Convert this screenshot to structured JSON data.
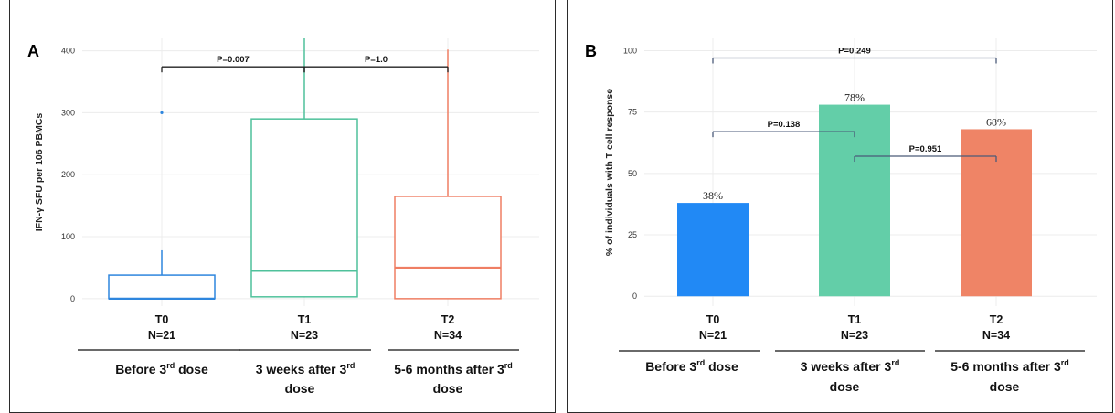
{
  "chart_data": [
    {
      "type": "box",
      "panel_letter": "A",
      "ylabel": "IFN-γ SFU per 106 PBMCs",
      "ylim": [
        -12,
        420
      ],
      "yticks": [
        0,
        100,
        200,
        300,
        400
      ],
      "grid": true,
      "colors": [
        "#2e86de",
        "#4fc19b",
        "#ef7e63"
      ],
      "categories": [
        {
          "code": "T0",
          "n": "N=21",
          "group": "Before 3",
          "sup": "rd",
          "after": " dose",
          "line2": ""
        },
        {
          "code": "T1",
          "n": "N=23",
          "group": "3 weeks after 3",
          "sup": "rd",
          "after": "",
          "line2": "dose"
        },
        {
          "code": "T2",
          "n": "N=34",
          "group": "5-6 months after 3",
          "sup": "rd",
          "after": "",
          "line2": "dose"
        }
      ],
      "boxes": [
        {
          "min": 0,
          "q1": 0,
          "median": 0,
          "q3": 38,
          "max": 78,
          "outliers": [
            300
          ]
        },
        {
          "min": 3,
          "q1": 3,
          "median": 45,
          "q3": 290,
          "max": 425,
          "outliers": []
        },
        {
          "min": 0,
          "q1": 0,
          "median": 50,
          "q3": 165,
          "max": 402,
          "outliers": []
        }
      ],
      "comparisons": [
        {
          "from": 0,
          "to": 1,
          "label": "P=0.007",
          "y": 374
        },
        {
          "from": 1,
          "to": 2,
          "label": "P=1.0",
          "y": 374
        }
      ]
    },
    {
      "type": "bar",
      "panel_letter": "B",
      "ylabel": "% of  individuals with T cell response",
      "ylim": [
        -4,
        105
      ],
      "yticks": [
        0,
        25,
        50,
        75,
        100
      ],
      "grid": true,
      "colors": [
        "#2189f5",
        "#63cea8",
        "#ef8466"
      ],
      "categories": [
        {
          "code": "T0",
          "n": "N=21",
          "group": "Before 3",
          "sup": "rd",
          "after": " dose",
          "line2": ""
        },
        {
          "code": "T1",
          "n": "N=23",
          "group": "3 weeks after 3",
          "sup": "rd",
          "after": "",
          "line2": "dose"
        },
        {
          "code": "T2",
          "n": "N=34",
          "group": "5-6 months after 3",
          "sup": "rd",
          "after": "",
          "line2": "dose"
        }
      ],
      "values": [
        38,
        78,
        68
      ],
      "value_labels": [
        "38%",
        "78%",
        "68%"
      ],
      "comparisons": [
        {
          "from": 0,
          "to": 2,
          "label": "P=0.249",
          "y": 97
        },
        {
          "from": 0,
          "to": 1,
          "label": "P=0.138",
          "y": 67
        },
        {
          "from": 1,
          "to": 2,
          "label": "P=0.951",
          "y": 57
        }
      ]
    }
  ]
}
